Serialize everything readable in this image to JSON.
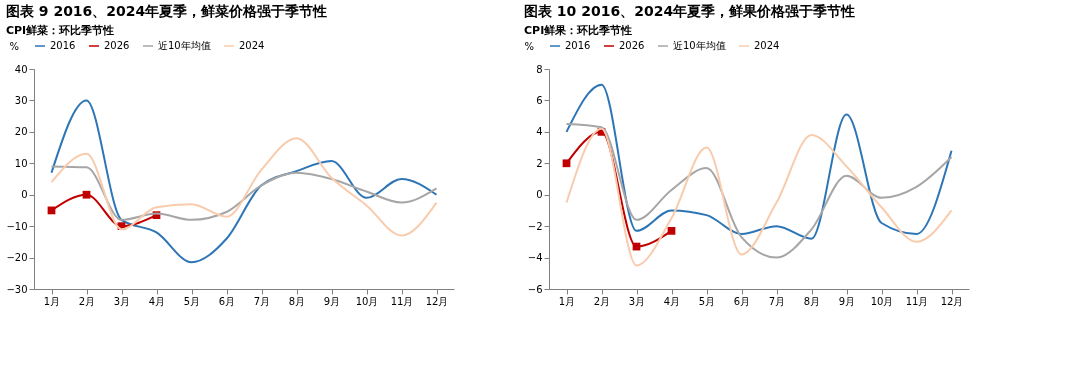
{
  "chart_data": [
    {
      "type": "line",
      "title": "图表 9 2016、2024年夏季，鲜菜价格强于季节性",
      "subtitle": "CPI鲜菜：环比季节性",
      "ylabel": "%",
      "categories": [
        "1月",
        "2月",
        "3月",
        "4月",
        "5月",
        "6月",
        "7月",
        "8月",
        "9月",
        "10月",
        "11月",
        "12月"
      ],
      "ylim": [
        -30,
        40
      ],
      "yticks": [
        -30,
        -20,
        -10,
        0,
        10,
        20,
        30,
        40
      ],
      "grid": false,
      "legend": "top",
      "series": [
        {
          "name": "2016",
          "color": "#2e75b6",
          "values": [
            7,
            30,
            -8,
            -12,
            -21.5,
            -14,
            3,
            7.5,
            10.7,
            -1,
            5,
            0
          ]
        },
        {
          "name": "2026",
          "color": "#c00000",
          "marker": "square",
          "values": [
            -5,
            0,
            -10,
            -6.5,
            null,
            null,
            null,
            null,
            null,
            null,
            null,
            null
          ]
        },
        {
          "name": "近10年均值",
          "color": "#a6a6a6",
          "values": [
            9,
            8.7,
            -8,
            -6,
            -8,
            -5.5,
            3,
            7,
            5,
            1,
            -2.5,
            2
          ]
        },
        {
          "name": "2024",
          "color": "#f8cbad",
          "values": [
            4,
            13,
            -11,
            -4,
            -3,
            -7,
            8,
            18,
            5.4,
            -3.4,
            -13,
            -2.5
          ]
        }
      ]
    },
    {
      "type": "line",
      "title": "图表 10 2016、2024年夏季，鲜果价格强于季节性",
      "subtitle": "CPI鲜果：环比季节性",
      "ylabel": "%",
      "categories": [
        "1月",
        "2月",
        "3月",
        "4月",
        "5月",
        "6月",
        "7月",
        "8月",
        "9月",
        "10月",
        "11月",
        "12月"
      ],
      "ylim": [
        -6,
        8
      ],
      "yticks": [
        -6,
        -4,
        -2,
        0,
        2,
        4,
        6,
        8
      ],
      "grid": false,
      "legend": "top",
      "series": [
        {
          "name": "2016",
          "color": "#2e75b6",
          "values": [
            4,
            7,
            -2.3,
            -1,
            -1.3,
            -2.5,
            -2,
            -2.8,
            5.1,
            -1.8,
            -2.5,
            2.8
          ]
        },
        {
          "name": "2026",
          "color": "#c00000",
          "marker": "square",
          "values": [
            2,
            4,
            -3.3,
            -2.3,
            null,
            null,
            null,
            null,
            null,
            null,
            null,
            null
          ]
        },
        {
          "name": "近10年均值",
          "color": "#a6a6a6",
          "values": [
            4.5,
            4.3,
            -1.6,
            0.3,
            1.7,
            -2.7,
            -4,
            -2.2,
            1.2,
            -0.2,
            0.5,
            2.4
          ]
        },
        {
          "name": "2024",
          "color": "#f8cbad",
          "values": [
            -0.5,
            4.2,
            -4.5,
            -1.5,
            3,
            -3.8,
            -0.5,
            3.8,
            1.8,
            -0.8,
            -3,
            -1
          ]
        }
      ]
    }
  ]
}
